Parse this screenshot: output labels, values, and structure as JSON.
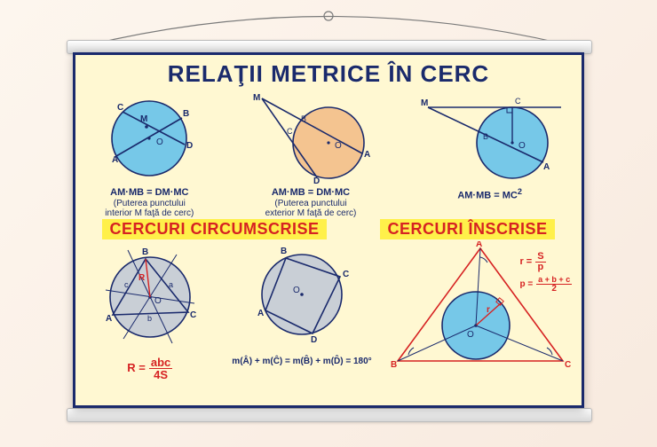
{
  "colors": {
    "poster_bg": "#fff8d2",
    "border": "#1a2a6c",
    "title": "#1a2a6c",
    "section_fg": "#d62222",
    "section_bg": "#fff04a",
    "circle_blue": "#76c8e8",
    "circle_peach": "#f4c490",
    "circle_gray": "#c9cfd6",
    "line_dark": "#1a2a6c",
    "line_red": "#d62222"
  },
  "title": "RELAŢII METRICE ÎN CERC",
  "top_row": [
    {
      "type": "interior-power",
      "labels": [
        "A",
        "B",
        "C",
        "D",
        "M",
        "O"
      ],
      "formula_html": "AM·MB = DM·MC",
      "note_html": "(Puterea punctului<br>interior M faţă de cerc)"
    },
    {
      "type": "exterior-power",
      "labels": [
        "A",
        "B",
        "C",
        "D",
        "M",
        "O"
      ],
      "formula_html": "AM·MB = DM·MC",
      "note_html": "(Puterea punctului<br>exterior M faţă de cerc)"
    },
    {
      "type": "tangent-secant",
      "labels": [
        "A",
        "B",
        "C",
        "M",
        "O"
      ],
      "formula_html": "AM·MB = MC<sup>2</sup>",
      "note_html": ""
    }
  ],
  "section_headers": {
    "left": "CERCURI CIRCUMSCRISE",
    "right": "CERCURI  ÎNSCRISE"
  },
  "bottom_left_triangle": {
    "labels": [
      "A",
      "B",
      "C",
      "O",
      "R",
      "a",
      "b",
      "c"
    ],
    "formula_R_eq": "R =",
    "formula_num": "abc",
    "formula_den": "4S"
  },
  "bottom_mid_quad": {
    "labels": [
      "A",
      "B",
      "C",
      "D",
      "O"
    ],
    "formula_html": "m(Â) + m(Ĉ) = m(B̂) + m(D̂) = 180°"
  },
  "bottom_right_inscribed": {
    "labels": [
      "A",
      "B",
      "C",
      "O",
      "r"
    ],
    "formula1_lhs": "r =",
    "formula1_num": "S",
    "formula1_den": "p",
    "formula2_lhs": "p =",
    "formula2_num": "a + b + c",
    "formula2_den": "2"
  }
}
